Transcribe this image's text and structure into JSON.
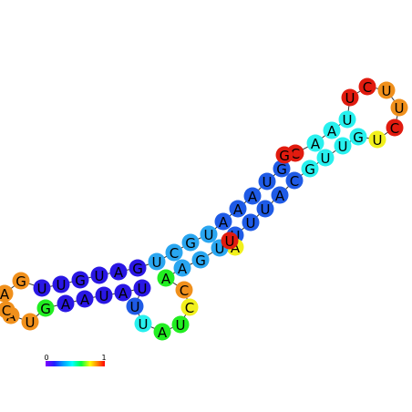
{
  "figure_type": "RNA secondary structure plot",
  "colorbar": {
    "min_label": "0",
    "max_label": "1",
    "scale": [
      "#8000ff",
      "#2020ff",
      "#00a0ff",
      "#00ffff",
      "#00ff40",
      "#ffff00",
      "#ff8000",
      "#ff0000"
    ]
  },
  "colors": {
    "navy": "#2a17e4",
    "blue": "#1f5be6",
    "skyblue": "#2aa6f0",
    "cyan": "#28f0ee",
    "green": "#22ee22",
    "yellow": "#f1f01c",
    "orange": "#f0901c",
    "red": "#e11b0f"
  },
  "nucleotides": [
    {
      "base": "A",
      "color": "orange"
    },
    {
      "base": "G",
      "color": "orange"
    },
    {
      "base": "U",
      "color": "navy"
    },
    {
      "base": "U",
      "color": "navy"
    },
    {
      "base": "G",
      "color": "navy"
    },
    {
      "base": "U",
      "color": "navy"
    },
    {
      "base": "A",
      "color": "navy"
    },
    {
      "base": "G",
      "color": "navy"
    },
    {
      "base": "U",
      "color": "skyblue"
    },
    {
      "base": "C",
      "color": "skyblue"
    },
    {
      "base": "G",
      "color": "skyblue"
    },
    {
      "base": "U",
      "color": "skyblue"
    },
    {
      "base": "A",
      "color": "blue"
    },
    {
      "base": "A",
      "color": "blue"
    },
    {
      "base": "A",
      "color": "blue"
    },
    {
      "base": "U",
      "color": "blue"
    },
    {
      "base": "G",
      "color": "blue"
    },
    {
      "base": "C",
      "color": "red"
    },
    {
      "base": "A",
      "color": "cyan"
    },
    {
      "base": "A",
      "color": "cyan"
    },
    {
      "base": "U",
      "color": "cyan"
    },
    {
      "base": "U",
      "color": "red"
    },
    {
      "base": "C",
      "color": "red"
    },
    {
      "base": "U",
      "color": "orange"
    },
    {
      "base": "U",
      "color": "orange"
    },
    {
      "base": "C",
      "color": "red"
    },
    {
      "base": "U",
      "color": "yellow"
    },
    {
      "base": "G",
      "color": "cyan"
    },
    {
      "base": "U",
      "color": "cyan"
    },
    {
      "base": "U",
      "color": "cyan"
    },
    {
      "base": "G",
      "color": "cyan"
    },
    {
      "base": "C",
      "color": "blue"
    },
    {
      "base": "A",
      "color": "blue"
    },
    {
      "base": "U",
      "color": "blue"
    },
    {
      "base": "U",
      "color": "blue"
    },
    {
      "base": "U",
      "color": "blue"
    },
    {
      "base": "A",
      "color": "yellow"
    },
    {
      "base": "U",
      "color": "skyblue"
    },
    {
      "base": "G",
      "color": "skyblue"
    },
    {
      "base": "A",
      "color": "skyblue"
    },
    {
      "base": "A",
      "color": "green"
    },
    {
      "base": "C",
      "color": "orange"
    },
    {
      "base": "C",
      "color": "yellow"
    },
    {
      "base": "U",
      "color": "green"
    },
    {
      "base": "A",
      "color": "green"
    },
    {
      "base": "U",
      "color": "cyan"
    },
    {
      "base": "U",
      "color": "blue"
    },
    {
      "base": "U",
      "color": "navy"
    },
    {
      "base": "A",
      "color": "navy"
    },
    {
      "base": "U",
      "color": "navy"
    },
    {
      "base": "A",
      "color": "navy"
    },
    {
      "base": "A",
      "color": "navy"
    },
    {
      "base": "G",
      "color": "green"
    },
    {
      "base": "U",
      "color": "orange"
    },
    {
      "base": "A",
      "color": "orange"
    },
    {
      "base": "C",
      "color": "orange"
    },
    {
      "base": "G",
      "color": "red"
    },
    {
      "base": "U",
      "color": "red"
    }
  ]
}
